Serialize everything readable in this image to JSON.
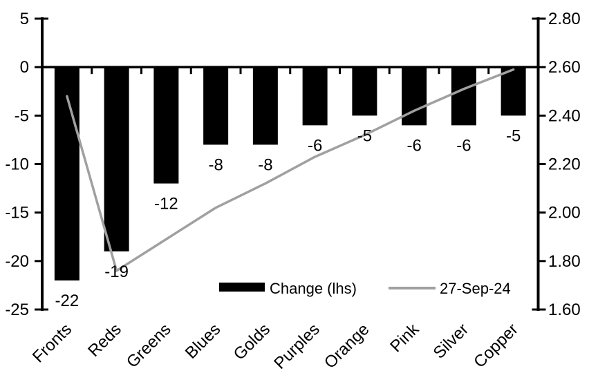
{
  "colors": {
    "background": "#ffffff",
    "bar": "#000000",
    "line": "#a0a0a0",
    "axis": "#000000",
    "text": "#000000"
  },
  "chart_data": {
    "type": "bar+line combo",
    "title": "",
    "xlabel": "",
    "ylabel_left": "",
    "ylabel_right": "",
    "grid": false,
    "legend_position": "inside-bottom-center",
    "categories": [
      "Fronts",
      "Reds",
      "Greens",
      "Blues",
      "Golds",
      "Purples",
      "Orange",
      "Pink",
      "Silver",
      "Copper"
    ],
    "series": [
      {
        "name": "Change (lhs)",
        "type": "bar",
        "axis": "left",
        "values": [
          -22,
          -19,
          -12,
          -8,
          -8,
          -6,
          -5,
          -6,
          -6,
          -5
        ]
      },
      {
        "name": "27-Sep-24",
        "type": "line",
        "axis": "right",
        "values": [
          2.48,
          1.76,
          1.89,
          2.02,
          2.12,
          2.23,
          2.32,
          2.42,
          2.51,
          2.59
        ]
      }
    ],
    "data_labels": [
      "-22",
      "-19",
      "-12",
      "-8",
      "-8",
      "-6",
      "-5",
      "-6",
      "-6",
      "-5"
    ],
    "left_axis": {
      "range": [
        -25,
        5
      ],
      "ticks": [
        "5",
        "0",
        "-5",
        "-10",
        "-15",
        "-20",
        "-25"
      ]
    },
    "right_axis": {
      "range": [
        1.6,
        2.8
      ],
      "ticks": [
        "2.80",
        "2.60",
        "2.40",
        "2.20",
        "2.00",
        "1.80",
        "1.60"
      ]
    }
  }
}
